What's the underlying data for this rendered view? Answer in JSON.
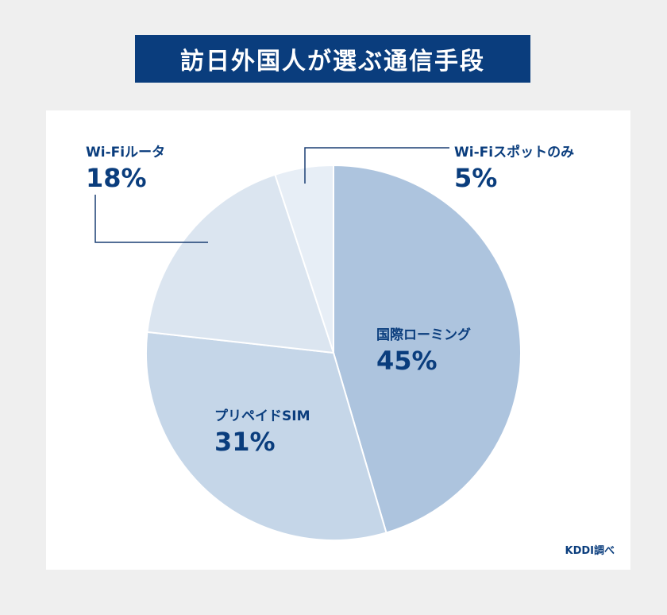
{
  "title": "訪日外国人が選ぶ通信手段",
  "source": "KDDI調べ",
  "colors": {
    "title_bg": "#0a3d7d",
    "text": "#0a3d7d",
    "leader": "#1a3f73"
  },
  "chart_data": {
    "type": "pie",
    "title": "訪日外国人が選ぶ通信手段",
    "unit": "%",
    "start": "12 o'clock, clockwise",
    "slices": [
      {
        "label": "国際ローミング",
        "value": 45,
        "display": "45%",
        "color": "#adc4de"
      },
      {
        "label": "プリペイドSIM",
        "value": 31,
        "display": "31%",
        "color": "#c5d6e8"
      },
      {
        "label": "Wi-Fiルータ",
        "value": 18,
        "display": "18%",
        "color": "#dbe5f0"
      },
      {
        "label": "Wi-Fiスポットのみ",
        "value": 5,
        "display": "5%",
        "color": "#e7eef6"
      }
    ]
  }
}
